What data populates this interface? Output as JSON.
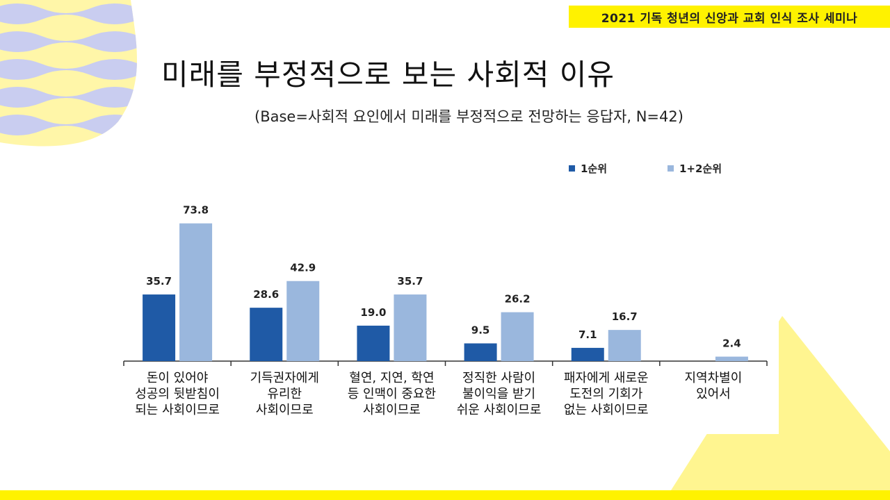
{
  "header": {
    "seminar_label": "2021 기독 청년의 신앙과 교회 인식 조사 세미나"
  },
  "title": "미래를 부정적으로 보는 사회적 이유",
  "subtitle": "(Base=사회적 요인에서 미래를 부정적으로 전망하는 응답자, N=42)",
  "colors": {
    "accent_yellow": "#fff200",
    "series_dark": "#1f5aa6",
    "series_light": "#9ab7dd",
    "wave_blue": "#c9cdf0",
    "wave_yellow": "#fff6a8"
  },
  "chart_data": {
    "type": "bar",
    "title": "미래를 부정적으로 보는 사회적 이유",
    "xlabel": "",
    "ylabel": "",
    "ylim": [
      0,
      80
    ],
    "legend_position": "top-right",
    "categories": [
      [
        "돈이 있어야",
        "성공의 뒷받침이",
        "되는 사회이므로"
      ],
      [
        "기득권자에게",
        "유리한",
        "사회이므로"
      ],
      [
        "혈연, 지연, 학연",
        "등 인맥이 중요한",
        "사회이므로"
      ],
      [
        "정직한 사람이",
        "불이익을 받기",
        "쉬운 사회이므로"
      ],
      [
        "패자에게 새로운",
        "도전의 기회가",
        "없는 사회이므로"
      ],
      [
        "지역차별이",
        "있어서"
      ]
    ],
    "series": [
      {
        "name": "1순위",
        "color": "#1f5aa6",
        "values": [
          35.7,
          28.6,
          19.0,
          9.5,
          7.1,
          null
        ],
        "labels": [
          "35.7",
          "28.6",
          "19.0",
          "9.5",
          "7.1",
          ""
        ]
      },
      {
        "name": "1+2순위",
        "color": "#9ab7dd",
        "values": [
          73.8,
          42.9,
          35.7,
          26.2,
          16.7,
          2.4
        ],
        "labels": [
          "73.8",
          "42.9",
          "35.7",
          "26.2",
          "16.7",
          "2.4"
        ]
      }
    ]
  }
}
